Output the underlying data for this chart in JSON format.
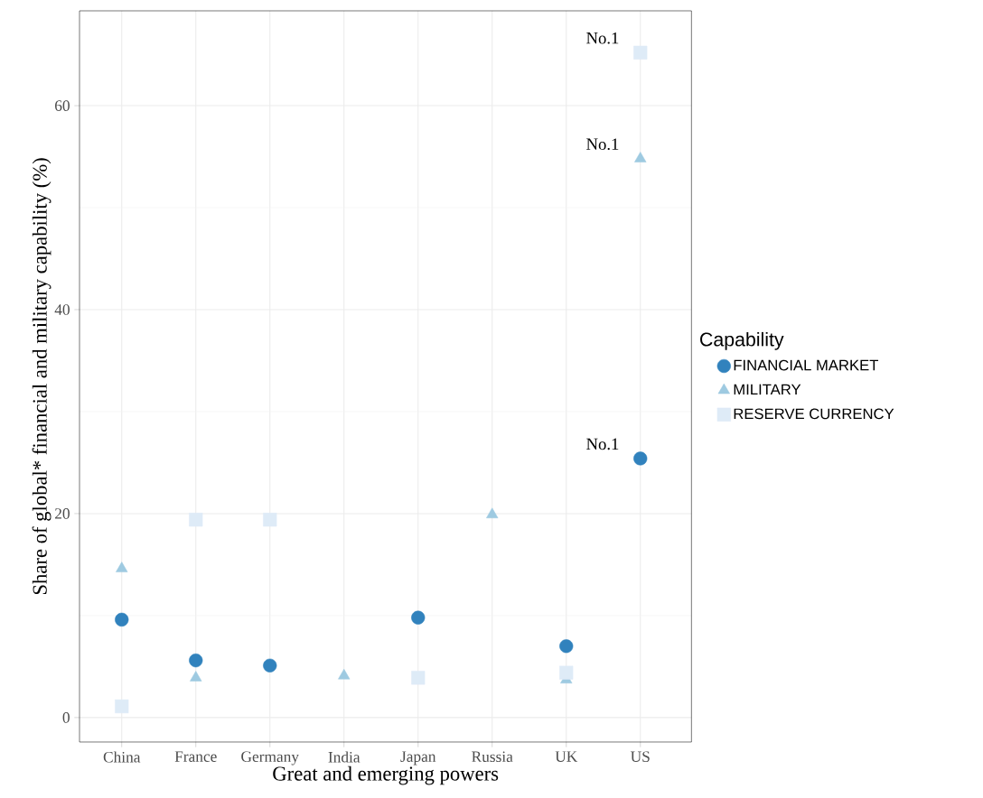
{
  "chart_data": {
    "type": "scatter",
    "xlabel": "Great and emerging powers",
    "ylabel": "Share of global* financial and military capability (%)",
    "legend_title": "Capability",
    "categories": [
      "China",
      "France",
      "Germany",
      "India",
      "Japan",
      "Russia",
      "UK",
      "US"
    ],
    "series": [
      {
        "name": "FINANCIAL MARKET",
        "color": "#3182bd",
        "marker": "circle",
        "values": [
          9.6,
          5.6,
          5.1,
          null,
          9.8,
          null,
          7.0,
          25.4
        ]
      },
      {
        "name": "MILITARY",
        "color": "#9ecae1",
        "marker": "triangle",
        "values": [
          14.6,
          3.9,
          null,
          4.1,
          null,
          19.9,
          3.7,
          54.8
        ]
      },
      {
        "name": "RESERVE CURRENCY",
        "color": "#deebf7",
        "marker": "square",
        "values": [
          1.1,
          19.4,
          19.4,
          null,
          3.9,
          null,
          4.4,
          65.2
        ]
      }
    ],
    "annotations": [
      {
        "text": "No.1",
        "x": "US",
        "y": 65.2
      },
      {
        "text": "No.1",
        "x": "US",
        "y": 54.8
      },
      {
        "text": "No.1",
        "x": "US",
        "y": 25.4
      }
    ],
    "ylim": [
      -2.4,
      69.3
    ],
    "yticks": [
      0,
      20,
      40,
      60
    ],
    "grid": true,
    "legend": "right"
  }
}
